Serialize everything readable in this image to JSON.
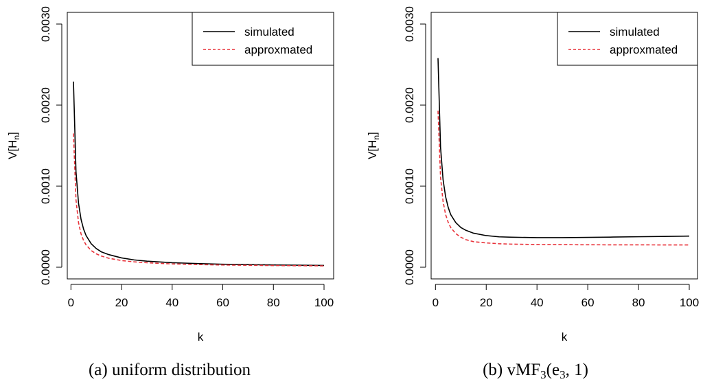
{
  "chart_data": [
    {
      "type": "line",
      "caption": "(a) uniform distribution",
      "xlabel": "k",
      "ylabel_main": "V[H",
      "ylabel_sub": "n",
      "ylabel_close": "]",
      "xlim": [
        1,
        100
      ],
      "ylim": [
        0.0,
        0.003
      ],
      "xticks": [
        0,
        20,
        40,
        60,
        80,
        100
      ],
      "yticks": [
        0.0,
        0.001,
        0.002,
        0.003
      ],
      "ytick_labels": [
        "0.0000",
        "0.0010",
        "0.0020",
        "0.0030"
      ],
      "legend_position": "top-right",
      "series": [
        {
          "name": "simulated",
          "color": "#000000",
          "dash": "solid",
          "x": [
            1,
            2,
            3,
            4,
            5,
            6,
            8,
            10,
            12,
            15,
            20,
            25,
            30,
            40,
            50,
            60,
            70,
            80,
            90,
            100
          ],
          "y": [
            0.00229,
            0.00118,
            0.00079,
            0.00059,
            0.00047,
            0.00039,
            0.00029,
            0.00023,
            0.00019,
            0.000155,
            0.000115,
            9e-05,
            7.5e-05,
            5.6e-05,
            4.5e-05,
            3.7e-05,
            3.2e-05,
            2.8e-05,
            2.5e-05,
            2.2e-05
          ]
        },
        {
          "name": "approxmated",
          "color": "#e8323a",
          "dash": "dashed",
          "x": [
            1,
            2,
            3,
            4,
            5,
            6,
            8,
            10,
            12,
            15,
            20,
            25,
            30,
            40,
            50,
            60,
            70,
            80,
            90,
            100
          ],
          "y": [
            0.00165,
            0.00083,
            0.00055,
            0.00041,
            0.00033,
            0.000275,
            0.000206,
            0.000165,
            0.000138,
            0.00011,
            8.25e-05,
            6.6e-05,
            5.5e-05,
            4.1e-05,
            3.3e-05,
            2.75e-05,
            2.36e-05,
            2.06e-05,
            1.83e-05,
            1.65e-05
          ]
        }
      ]
    },
    {
      "type": "line",
      "caption": "(b) vMF",
      "caption_sub": "3",
      "caption_args": "(e",
      "caption_args_sub": "3",
      "caption_tail": ", 1)",
      "xlabel": "k",
      "ylabel_main": "V[H",
      "ylabel_sub": "n",
      "ylabel_close": "]",
      "xlim": [
        1,
        100
      ],
      "ylim": [
        0.0,
        0.003
      ],
      "xticks": [
        0,
        20,
        40,
        60,
        80,
        100
      ],
      "yticks": [
        0.0,
        0.001,
        0.002,
        0.003
      ],
      "ytick_labels": [
        "0.0000",
        "0.0010",
        "0.0020",
        "0.0030"
      ],
      "legend_position": "top-right",
      "series": [
        {
          "name": "simulated",
          "color": "#000000",
          "dash": "solid",
          "x": [
            1,
            2,
            3,
            4,
            5,
            6,
            8,
            10,
            12,
            15,
            20,
            25,
            30,
            40,
            50,
            60,
            70,
            80,
            90,
            100
          ],
          "y": [
            0.00258,
            0.00148,
            0.00108,
            0.00087,
            0.00074,
            0.00065,
            0.00055,
            0.00049,
            0.000455,
            0.00042,
            0.00039,
            0.000375,
            0.00037,
            0.000365,
            0.000365,
            0.000368,
            0.000372,
            0.000376,
            0.00038,
            0.000384
          ]
        },
        {
          "name": "approxmated",
          "color": "#e8323a",
          "dash": "dashed",
          "x": [
            1,
            2,
            3,
            4,
            5,
            6,
            8,
            10,
            12,
            15,
            20,
            25,
            30,
            40,
            50,
            60,
            70,
            80,
            90,
            100
          ],
          "y": [
            0.00193,
            0.00111,
            0.00081,
            0.00065,
            0.000555,
            0.00049,
            0.000415,
            0.00037,
            0.00034,
            0.000315,
            0.0003,
            0.00029,
            0.000285,
            0.00028,
            0.000278,
            0.000277,
            0.000276,
            0.000276,
            0.000275,
            0.000275
          ]
        }
      ]
    }
  ]
}
